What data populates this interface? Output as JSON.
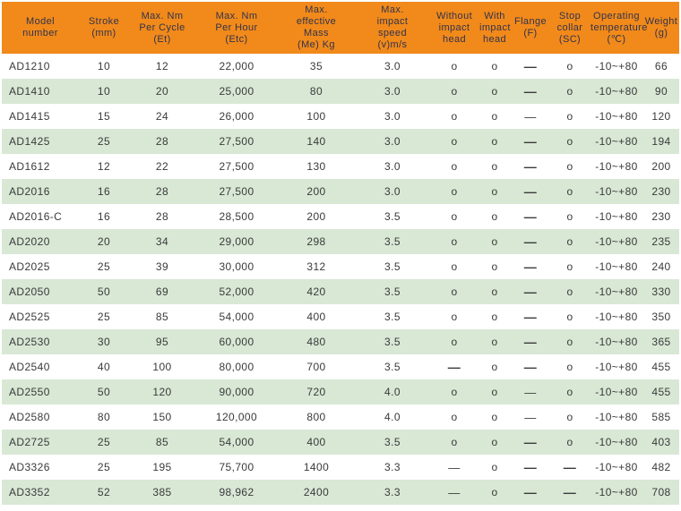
{
  "style": {
    "header_bg": "#F18A1A",
    "header_text": "#32324E",
    "row_alt_bg": "#D8E8D5",
    "row_bg": "#FFFFFF",
    "body_text": "#3A3A3A"
  },
  "chart_data": {
    "type": "table",
    "title": "",
    "columns": [
      {
        "key": "model-number",
        "label": "Model\nnumber"
      },
      {
        "key": "stroke",
        "label": "Stroke\n(mm)"
      },
      {
        "key": "max-nm-per-cycle",
        "label": "Max. Nm\nPer Cycle\n(Et)"
      },
      {
        "key": "max-nm-per-hour",
        "label": "Max. Nm\nPer Hour\n(Etc)"
      },
      {
        "key": "max-effective-mass",
        "label": "Max.\neffective\nMass\n(Me) Kg"
      },
      {
        "key": "max-impact-speed",
        "label": "Max.\nimpact\nspeed\n(v)m/s"
      },
      {
        "key": "without-impact-head",
        "label": "Without\nimpact\nhead"
      },
      {
        "key": "with-impact-head",
        "label": "With\nimpact\nhead"
      },
      {
        "key": "flange",
        "label": "Flange\n(F)"
      },
      {
        "key": "stop-collar",
        "label": "Stop\ncollar\n(SC)"
      },
      {
        "key": "operating-temperature",
        "label": "Operating\ntemperature\n(℃)"
      },
      {
        "key": "weight",
        "label": "Weight\n(g)"
      }
    ],
    "glyphs": {
      "o": "o",
      "dash": "—",
      "dash_bold": "—"
    },
    "rows": [
      [
        "AD1210",
        "10",
        "12",
        "22,000",
        "35",
        "3.0",
        "o",
        "o",
        "dash_bold",
        "o",
        "-10~+80",
        "66"
      ],
      [
        "AD1410",
        "10",
        "20",
        "25,000",
        "80",
        "3.0",
        "o",
        "o",
        "dash_bold",
        "o",
        "-10~+80",
        "90"
      ],
      [
        "AD1415",
        "15",
        "24",
        "26,000",
        "100",
        "3.0",
        "o",
        "o",
        "dash",
        "o",
        "-10~+80",
        "120"
      ],
      [
        "AD1425",
        "25",
        "28",
        "27,500",
        "140",
        "3.0",
        "o",
        "o",
        "dash_bold",
        "o",
        "-10~+80",
        "194"
      ],
      [
        "AD1612",
        "12",
        "22",
        "27,500",
        "130",
        "3.0",
        "o",
        "o",
        "dash_bold",
        "o",
        "-10~+80",
        "200"
      ],
      [
        "AD2016",
        "16",
        "28",
        "27,500",
        "200",
        "3.0",
        "o",
        "o",
        "dash_bold",
        "o",
        "-10~+80",
        "230"
      ],
      [
        "AD2016-C",
        "16",
        "28",
        "28,500",
        "200",
        "3.5",
        "o",
        "o",
        "dash_bold",
        "o",
        "-10~+80",
        "230"
      ],
      [
        "AD2020",
        "20",
        "34",
        "29,000",
        "298",
        "3.5",
        "o",
        "o",
        "dash_bold",
        "o",
        "-10~+80",
        "235"
      ],
      [
        "AD2025",
        "25",
        "39",
        "30,000",
        "312",
        "3.5",
        "o",
        "o",
        "dash_bold",
        "o",
        "-10~+80",
        "240"
      ],
      [
        "AD2050",
        "50",
        "69",
        "52,000",
        "420",
        "3.5",
        "o",
        "o",
        "dash_bold",
        "o",
        "-10~+80",
        "330"
      ],
      [
        "AD2525",
        "25",
        "85",
        "54,000",
        "400",
        "3.5",
        "o",
        "o",
        "dash_bold",
        "o",
        "-10~+80",
        "350"
      ],
      [
        "AD2530",
        "30",
        "95",
        "60,000",
        "480",
        "3.5",
        "o",
        "o",
        "dash_bold",
        "o",
        "-10~+80",
        "365"
      ],
      [
        "AD2540",
        "40",
        "100",
        "80,000",
        "700",
        "3.5",
        "dash_bold",
        "o",
        "dash_bold",
        "o",
        "-10~+80",
        "455"
      ],
      [
        "AD2550",
        "50",
        "120",
        "90,000",
        "720",
        "4.0",
        "o",
        "o",
        "dash",
        "o",
        "-10~+80",
        "455"
      ],
      [
        "AD2580",
        "80",
        "150",
        "120,000",
        "800",
        "4.0",
        "o",
        "o",
        "dash",
        "o",
        "-10~+80",
        "585"
      ],
      [
        "AD2725",
        "25",
        "85",
        "54,000",
        "400",
        "3.5",
        "o",
        "o",
        "dash_bold",
        "o",
        "-10~+80",
        "403"
      ],
      [
        "AD3326",
        "25",
        "195",
        "75,700",
        "1400",
        "3.3",
        "dash",
        "o",
        "dash_bold",
        "dash_bold",
        "-10~+80",
        "482"
      ],
      [
        "AD3352",
        "52",
        "385",
        "98,962",
        "2400",
        "3.3",
        "dash",
        "o",
        "dash_bold",
        "dash_bold",
        "-10~+80",
        "708"
      ]
    ]
  }
}
